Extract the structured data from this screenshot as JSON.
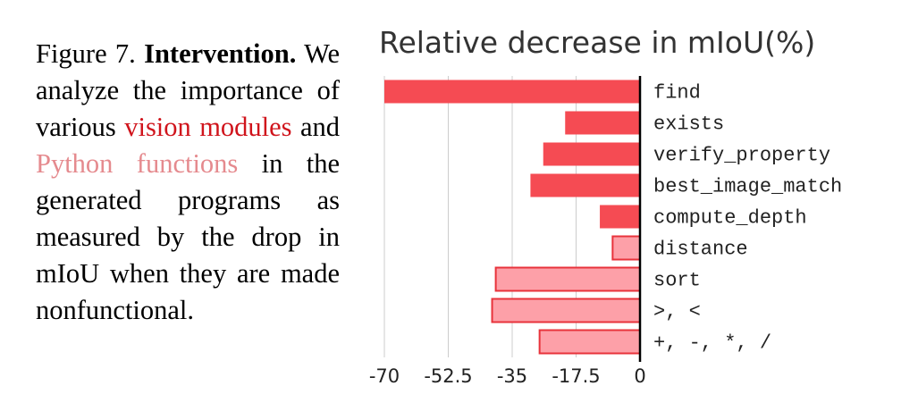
{
  "caption": {
    "fig": "Figure 7.",
    "bold": "Intervention.",
    "p1": "We analyze the impor-tance of various",
    "vision": "vision modules",
    "and": "and",
    "python": "Python functions",
    "p2": "in the gener-ated programs as mea-sured by the drop in mIoU when they are made nonfunctional."
  },
  "chart_data": {
    "type": "bar",
    "orientation": "horizontal",
    "title": "Relative decrease in mIoU(%)",
    "xlabel": "",
    "ylabel": "",
    "xlim": [
      -70,
      0
    ],
    "xticks": [
      -70,
      -52.5,
      -35,
      -17.5,
      0
    ],
    "xtick_labels": [
      "-70",
      "-52.5",
      "-35",
      "-17.5",
      "0"
    ],
    "grid": "vertical",
    "categories": [
      "find",
      "exists",
      "verify_property",
      "best_image_match",
      "compute_depth",
      "distance",
      "sort",
      ">, <",
      "+, -, *, /"
    ],
    "values": [
      -70,
      -20.5,
      -26.5,
      -30,
      -11,
      -7.5,
      -39.5,
      -40.5,
      -27.5
    ],
    "groups": [
      "vision",
      "vision",
      "vision",
      "vision",
      "vision",
      "python",
      "python",
      "python",
      "python"
    ],
    "colors": {
      "vision_fill": "#f54b53",
      "python_fill": "#fda0a8",
      "python_stroke": "#e8333b",
      "axis": "#000000",
      "grid": "#cccccc"
    }
  }
}
